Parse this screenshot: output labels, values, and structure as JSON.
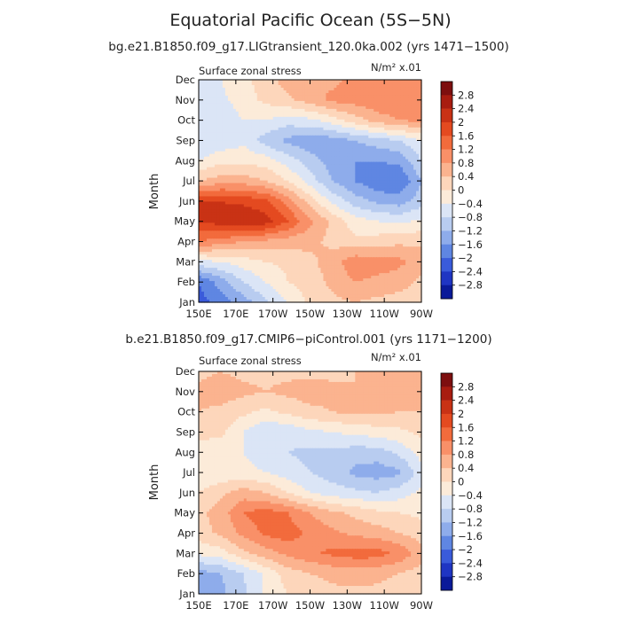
{
  "figure": {
    "title": "Equatorial Pacific Ocean (5S−5N)"
  },
  "chart_data": [
    {
      "type": "heatmap",
      "subtitle": "bg.e21.B1850.f09_g17.LIGtransient_120.0ka.002 (yrs 1471−1500)",
      "left_label": "Surface zonal stress",
      "units_label": "N/m² x.01",
      "xlabel": "",
      "ylabel": "Month",
      "x_ticks": [
        "150E",
        "170E",
        "170W",
        "150W",
        "130W",
        "110W",
        "90W"
      ],
      "y_ticks": [
        "Jan",
        "Feb",
        "Mar",
        "Apr",
        "May",
        "Jun",
        "Jul",
        "Aug",
        "Sep",
        "Oct",
        "Nov",
        "Dec"
      ],
      "grid": [
        [
          -2.2,
          -1.8,
          -1.4,
          -0.9,
          -0.4,
          0.1,
          0.3,
          0.4,
          0.3,
          0.2,
          0.1
        ],
        [
          -2.0,
          -1.4,
          -0.8,
          -0.4,
          0.0,
          0.2,
          0.5,
          0.8,
          0.7,
          0.6,
          0.3
        ],
        [
          -0.5,
          -0.4,
          -0.2,
          0.0,
          0.1,
          0.3,
          0.6,
          1.1,
          1.0,
          0.9,
          0.6
        ],
        [
          1.2,
          1.0,
          0.8,
          0.7,
          0.6,
          0.5,
          0.3,
          0.1,
          0.2,
          0.3,
          0.3
        ],
        [
          2.0,
          2.2,
          2.4,
          2.2,
          1.6,
          0.9,
          0.3,
          -0.2,
          -0.4,
          -0.5,
          -0.3
        ],
        [
          2.0,
          2.0,
          1.9,
          1.7,
          1.0,
          0.2,
          -0.5,
          -1.0,
          -1.3,
          -1.4,
          -1.0
        ],
        [
          0.4,
          0.6,
          0.6,
          0.4,
          0.0,
          -0.6,
          -1.2,
          -1.6,
          -1.9,
          -2.0,
          -1.2
        ],
        [
          -0.4,
          -0.1,
          -0.1,
          -0.2,
          -0.6,
          -1.0,
          -1.4,
          -1.6,
          -1.6,
          -1.5,
          -0.8
        ],
        [
          -0.8,
          -0.7,
          -0.5,
          -1.0,
          -1.3,
          -1.5,
          -1.4,
          -1.2,
          -1.0,
          -0.8,
          -0.4
        ],
        [
          -0.8,
          -0.7,
          -0.4,
          -0.4,
          -0.6,
          -0.5,
          -0.2,
          0.2,
          0.6,
          0.8,
          0.9
        ],
        [
          -0.8,
          -0.5,
          -0.2,
          0.1,
          0.3,
          0.6,
          0.9,
          1.0,
          1.1,
          1.1,
          1.1
        ],
        [
          -0.8,
          -0.4,
          -0.1,
          0.2,
          0.6,
          0.8,
          0.7,
          0.9,
          1.0,
          1.0,
          1.0
        ]
      ],
      "colorbar": {
        "levels": [
          "2.8",
          "2.4",
          "2",
          "1.6",
          "1.2",
          "0.8",
          "0.4",
          "0",
          "−0.4",
          "−0.8",
          "−1.2",
          "−1.6",
          "−2",
          "−2.4",
          "−2.8"
        ],
        "colors": [
          "#7d0f0f",
          "#a81c10",
          "#c93215",
          "#e44a20",
          "#f26b3c",
          "#f99068",
          "#fbb38f",
          "#fdd6bb",
          "#fcebd9",
          "#dbe5f6",
          "#b8ccf0",
          "#8eaceb",
          "#5f86e2",
          "#3a5bda",
          "#1f35c3",
          "#0a1a99"
        ]
      }
    },
    {
      "type": "heatmap",
      "subtitle": "b.e21.B1850.f09_g17.CMIP6−piControl.001 (yrs 1171−1200)",
      "left_label": "Surface zonal stress",
      "units_label": "N/m² x.01",
      "xlabel": "",
      "ylabel": "Month",
      "x_ticks": [
        "150E",
        "170E",
        "170W",
        "150W",
        "130W",
        "110W",
        "90W"
      ],
      "y_ticks": [
        "Jan",
        "Feb",
        "Mar",
        "Apr",
        "May",
        "Jun",
        "Jul",
        "Aug",
        "Sep",
        "Oct",
        "Nov",
        "Dec"
      ],
      "grid": [
        [
          -1.4,
          -1.3,
          -0.9,
          -0.3,
          0.0,
          0.2,
          0.3,
          0.3,
          0.3,
          0.2,
          0.1
        ],
        [
          -1.4,
          -1.2,
          -0.8,
          -0.3,
          0.2,
          0.4,
          0.5,
          0.6,
          0.5,
          0.4,
          0.2
        ],
        [
          -0.3,
          -0.2,
          0.3,
          0.6,
          0.9,
          1.1,
          1.3,
          1.4,
          1.4,
          1.1,
          0.6
        ],
        [
          0.2,
          0.5,
          0.9,
          1.3,
          1.4,
          1.1,
          0.9,
          0.7,
          0.6,
          0.4,
          0.2
        ],
        [
          0.3,
          0.6,
          1.2,
          1.4,
          1.2,
          0.8,
          0.5,
          0.3,
          0.1,
          0.0,
          -0.1
        ],
        [
          0.0,
          0.3,
          0.6,
          0.4,
          0.0,
          -0.4,
          -0.6,
          -0.7,
          -0.8,
          -0.6,
          -0.3
        ],
        [
          -0.4,
          -0.3,
          -0.3,
          -0.4,
          -0.6,
          -0.8,
          -1.0,
          -1.3,
          -1.4,
          -1.3,
          -0.6
        ],
        [
          -0.3,
          -0.3,
          -0.4,
          -0.6,
          -0.8,
          -0.9,
          -0.9,
          -1.0,
          -1.0,
          -0.7,
          -0.2
        ],
        [
          0.2,
          0.1,
          -0.4,
          -0.8,
          -0.7,
          -0.5,
          -0.4,
          -0.3,
          -0.2,
          -0.1,
          0.1
        ],
        [
          0.4,
          0.3,
          0.1,
          -0.1,
          0.1,
          0.3,
          0.4,
          0.5,
          0.5,
          0.4,
          0.4
        ],
        [
          0.5,
          0.6,
          0.5,
          0.4,
          0.5,
          0.6,
          0.5,
          0.4,
          0.5,
          0.6,
          0.6
        ],
        [
          0.3,
          0.4,
          0.3,
          0.3,
          0.3,
          0.3,
          0.3,
          0.4,
          0.4,
          0.5,
          0.5
        ]
      ],
      "colorbar": {
        "levels": [
          "2.8",
          "2.4",
          "2",
          "1.6",
          "1.2",
          "0.8",
          "0.4",
          "0",
          "−0.4",
          "−0.8",
          "−1.2",
          "−1.6",
          "−2",
          "−2.4",
          "−2.8"
        ],
        "colors": [
          "#7d0f0f",
          "#a81c10",
          "#c93215",
          "#e44a20",
          "#f26b3c",
          "#f99068",
          "#fbb38f",
          "#fdd6bb",
          "#fcebd9",
          "#dbe5f6",
          "#b8ccf0",
          "#8eaceb",
          "#5f86e2",
          "#3a5bda",
          "#1f35c3",
          "#0a1a99"
        ]
      }
    }
  ]
}
